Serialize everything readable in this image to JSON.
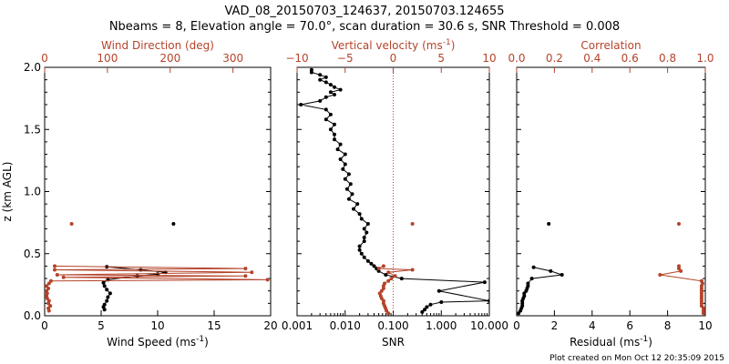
{
  "figure": {
    "title_line1": "VAD_08_20150703_124637, 20150703.124655",
    "title_line2": "Nbeams = 8, Elevation angle = 70.0°, scan duration = 30.6 s, SNR Threshold = 0.008",
    "footer": "Plot created on Mon Oct 12 20:35:09 2015",
    "colors": {
      "black": "#000000",
      "red": "#b5432a"
    }
  },
  "chart_data": [
    {
      "type": "line",
      "panel": "wind",
      "ylabel": "z (km AGL)",
      "ylim": [
        0,
        2
      ],
      "yticks": [
        0.0,
        0.5,
        1.0,
        1.5,
        2.0
      ],
      "yticklabels": [
        "0.0",
        "0.5",
        "1.0",
        "1.5",
        "2.0"
      ],
      "bottom_axis": {
        "label": "Wind Speed (ms",
        "label_sup": "-1",
        "label_end": ")",
        "xlim": [
          0,
          20
        ],
        "ticks": [
          0,
          5,
          10,
          15,
          20
        ],
        "ticklabels": [
          "0",
          "5",
          "10",
          "15",
          "20"
        ]
      },
      "top_axis": {
        "label": "Wind Direction (deg)",
        "xlim": [
          0,
          360
        ],
        "ticks": [
          0,
          100,
          200,
          300
        ],
        "ticklabels": [
          "0",
          "100",
          "200",
          "300"
        ]
      },
      "series": [
        {
          "axis": "bottom",
          "color": "#000000",
          "points": [
            [
              5.3,
              0.05
            ],
            [
              5.2,
              0.07
            ],
            [
              5.3,
              0.09
            ],
            [
              5.5,
              0.12
            ],
            [
              5.6,
              0.15
            ],
            [
              5.8,
              0.18
            ],
            [
              5.5,
              0.21
            ],
            [
              5.3,
              0.24
            ],
            [
              5.2,
              0.265
            ],
            [
              5.6,
              0.29
            ],
            [
              8.2,
              0.32
            ],
            [
              10.0,
              0.335
            ],
            [
              10.7,
              0.35
            ],
            [
              8.5,
              0.37
            ],
            [
              5.5,
              0.395
            ]
          ]
        },
        {
          "axis": "bottom",
          "color": "#000000",
          "points": [
            [
              11.4,
              0.74
            ]
          ]
        },
        {
          "axis": "top",
          "color": "#b5432a",
          "points": [
            [
              7,
              0.04
            ],
            [
              6,
              0.06
            ],
            [
              9,
              0.08
            ],
            [
              6,
              0.1
            ],
            [
              7,
              0.12
            ],
            [
              4,
              0.14
            ],
            [
              3,
              0.16
            ],
            [
              4,
              0.18
            ],
            [
              3,
              0.2
            ],
            [
              6,
              0.22
            ],
            [
              3,
              0.24
            ],
            [
              7,
              0.26
            ],
            [
              10,
              0.28
            ],
            [
              355,
              0.29
            ],
            [
              30,
              0.31
            ],
            [
              320,
              0.32
            ],
            [
              20,
              0.33
            ],
            [
              330,
              0.35
            ],
            [
              16,
              0.37
            ],
            [
              320,
              0.38
            ],
            [
              16,
              0.4
            ]
          ]
        },
        {
          "axis": "top",
          "color": "#b5432a",
          "points": [
            [
              43,
              0.74
            ]
          ]
        }
      ]
    },
    {
      "type": "line",
      "panel": "snr",
      "ylim": [
        0,
        2
      ],
      "bottom_axis": {
        "label": "SNR",
        "scale": "log",
        "xlim": [
          0.001,
          10
        ],
        "ticks": [
          0.001,
          0.01,
          0.1,
          1,
          10
        ],
        "ticklabels": [
          "0.001",
          "0.010",
          "0.100",
          "1.000",
          "10.000"
        ]
      },
      "top_axis": {
        "label": "Vertical velocity (ms",
        "label_sup": "-1",
        "label_end": ")",
        "xlim": [
          -10,
          10
        ],
        "ticks": [
          -10,
          -5,
          0,
          5,
          10
        ],
        "ticklabels": [
          "−10",
          "−5",
          "0",
          "5",
          "10"
        ],
        "zero_line": 0
      },
      "series": [
        {
          "axis": "bottom",
          "color": "#000000",
          "points": [
            [
              0.4,
              0.03
            ],
            [
              0.45,
              0.05
            ],
            [
              0.5,
              0.07
            ],
            [
              0.6,
              0.09
            ],
            [
              1.0,
              0.11
            ],
            [
              10,
              0.12
            ],
            [
              0.9,
              0.2
            ],
            [
              8,
              0.27
            ],
            [
              0.15,
              0.3
            ],
            [
              0.07,
              0.33
            ],
            [
              0.05,
              0.36
            ],
            [
              0.045,
              0.38
            ],
            [
              0.04,
              0.4
            ],
            [
              0.035,
              0.42
            ],
            [
              0.03,
              0.44
            ],
            [
              0.025,
              0.47
            ],
            [
              0.022,
              0.5
            ],
            [
              0.02,
              0.53
            ],
            [
              0.02,
              0.56
            ],
            [
              0.025,
              0.6
            ],
            [
              0.025,
              0.63
            ],
            [
              0.028,
              0.67
            ],
            [
              0.025,
              0.7
            ],
            [
              0.03,
              0.74
            ],
            [
              0.022,
              0.78
            ],
            [
              0.02,
              0.82
            ],
            [
              0.015,
              0.86
            ],
            [
              0.018,
              0.9
            ],
            [
              0.012,
              0.94
            ],
            [
              0.014,
              0.98
            ],
            [
              0.011,
              1.02
            ],
            [
              0.013,
              1.06
            ],
            [
              0.01,
              1.1
            ],
            [
              0.012,
              1.14
            ],
            [
              0.009,
              1.18
            ],
            [
              0.01,
              1.22
            ],
            [
              0.008,
              1.26
            ],
            [
              0.01,
              1.3
            ],
            [
              0.007,
              1.34
            ],
            [
              0.008,
              1.38
            ],
            [
              0.006,
              1.42
            ],
            [
              0.006,
              1.46
            ],
            [
              0.005,
              1.5
            ],
            [
              0.006,
              1.54
            ],
            [
              0.004,
              1.58
            ],
            [
              0.005,
              1.62
            ],
            [
              0.004,
              1.66
            ],
            [
              0.0012,
              1.7
            ],
            [
              0.003,
              1.73
            ],
            [
              0.004,
              1.76
            ],
            [
              0.006,
              1.78
            ],
            [
              0.005,
              1.8
            ],
            [
              0.008,
              1.82
            ],
            [
              0.006,
              1.84
            ],
            [
              0.005,
              1.86
            ],
            [
              0.004,
              1.88
            ],
            [
              0.003,
              1.9
            ],
            [
              0.004,
              1.92
            ],
            [
              0.003,
              1.94
            ],
            [
              0.002,
              1.96
            ],
            [
              0.002,
              1.98
            ]
          ]
        },
        {
          "axis": "top",
          "color": "#b5432a",
          "points": [
            [
              -0.5,
              0.02
            ],
            [
              -0.7,
              0.04
            ],
            [
              -0.8,
              0.06
            ],
            [
              -0.9,
              0.08
            ],
            [
              -1.0,
              0.1
            ],
            [
              -1.0,
              0.12
            ],
            [
              -1.2,
              0.14
            ],
            [
              -1.3,
              0.16
            ],
            [
              -1.4,
              0.18
            ],
            [
              -1.2,
              0.2
            ],
            [
              -1.0,
              0.22
            ],
            [
              -1.0,
              0.24
            ],
            [
              -0.9,
              0.26
            ],
            [
              -0.5,
              0.28
            ],
            [
              -0.2,
              0.3
            ],
            [
              0.2,
              0.32
            ],
            [
              -0.5,
              0.35
            ],
            [
              2.0,
              0.37
            ],
            [
              -1.5,
              0.38
            ],
            [
              -1.0,
              0.4
            ]
          ]
        },
        {
          "axis": "top",
          "color": "#b5432a",
          "points": [
            [
              2.0,
              0.74
            ]
          ]
        }
      ]
    },
    {
      "type": "line",
      "panel": "residual",
      "ylim": [
        0,
        2
      ],
      "bottom_axis": {
        "label": "Residual (ms",
        "label_sup": "-1",
        "label_end": ")",
        "xlim": [
          0,
          10
        ],
        "ticks": [
          0,
          2,
          4,
          6,
          8,
          10
        ],
        "ticklabels": [
          "0",
          "2",
          "4",
          "6",
          "8",
          "10"
        ]
      },
      "top_axis": {
        "label": "Correlation",
        "xlim": [
          0.0,
          1.0
        ],
        "ticks": [
          0.0,
          0.2,
          0.4,
          0.6,
          0.8,
          1.0
        ],
        "ticklabels": [
          "0.0",
          "0.2",
          "0.4",
          "0.6",
          "0.8",
          "1.0"
        ]
      },
      "series": [
        {
          "axis": "bottom",
          "color": "#000000",
          "points": [
            [
              0.1,
              0.02
            ],
            [
              0.2,
              0.04
            ],
            [
              0.25,
              0.06
            ],
            [
              0.3,
              0.08
            ],
            [
              0.3,
              0.1
            ],
            [
              0.3,
              0.12
            ],
            [
              0.35,
              0.14
            ],
            [
              0.4,
              0.16
            ],
            [
              0.4,
              0.18
            ],
            [
              0.5,
              0.2
            ],
            [
              0.55,
              0.22
            ],
            [
              0.6,
              0.24
            ],
            [
              0.6,
              0.26
            ],
            [
              0.8,
              0.3
            ],
            [
              2.4,
              0.33
            ],
            [
              1.8,
              0.36
            ],
            [
              0.9,
              0.39
            ]
          ]
        },
        {
          "axis": "bottom",
          "color": "#000000",
          "points": [
            [
              1.7,
              0.74
            ]
          ]
        },
        {
          "axis": "top",
          "color": "#b5432a",
          "points": [
            [
              0.99,
              0.02
            ],
            [
              0.99,
              0.04
            ],
            [
              0.99,
              0.06
            ],
            [
              0.98,
              0.08
            ],
            [
              0.98,
              0.1
            ],
            [
              0.98,
              0.12
            ],
            [
              0.98,
              0.14
            ],
            [
              0.98,
              0.16
            ],
            [
              0.98,
              0.18
            ],
            [
              0.98,
              0.2
            ],
            [
              0.98,
              0.22
            ],
            [
              0.98,
              0.24
            ],
            [
              0.985,
              0.26
            ],
            [
              0.98,
              0.28
            ],
            [
              0.76,
              0.33
            ],
            [
              0.87,
              0.36
            ],
            [
              0.86,
              0.38
            ],
            [
              0.86,
              0.4
            ]
          ]
        },
        {
          "axis": "top",
          "color": "#b5432a",
          "points": [
            [
              0.86,
              0.74
            ]
          ]
        }
      ]
    }
  ]
}
